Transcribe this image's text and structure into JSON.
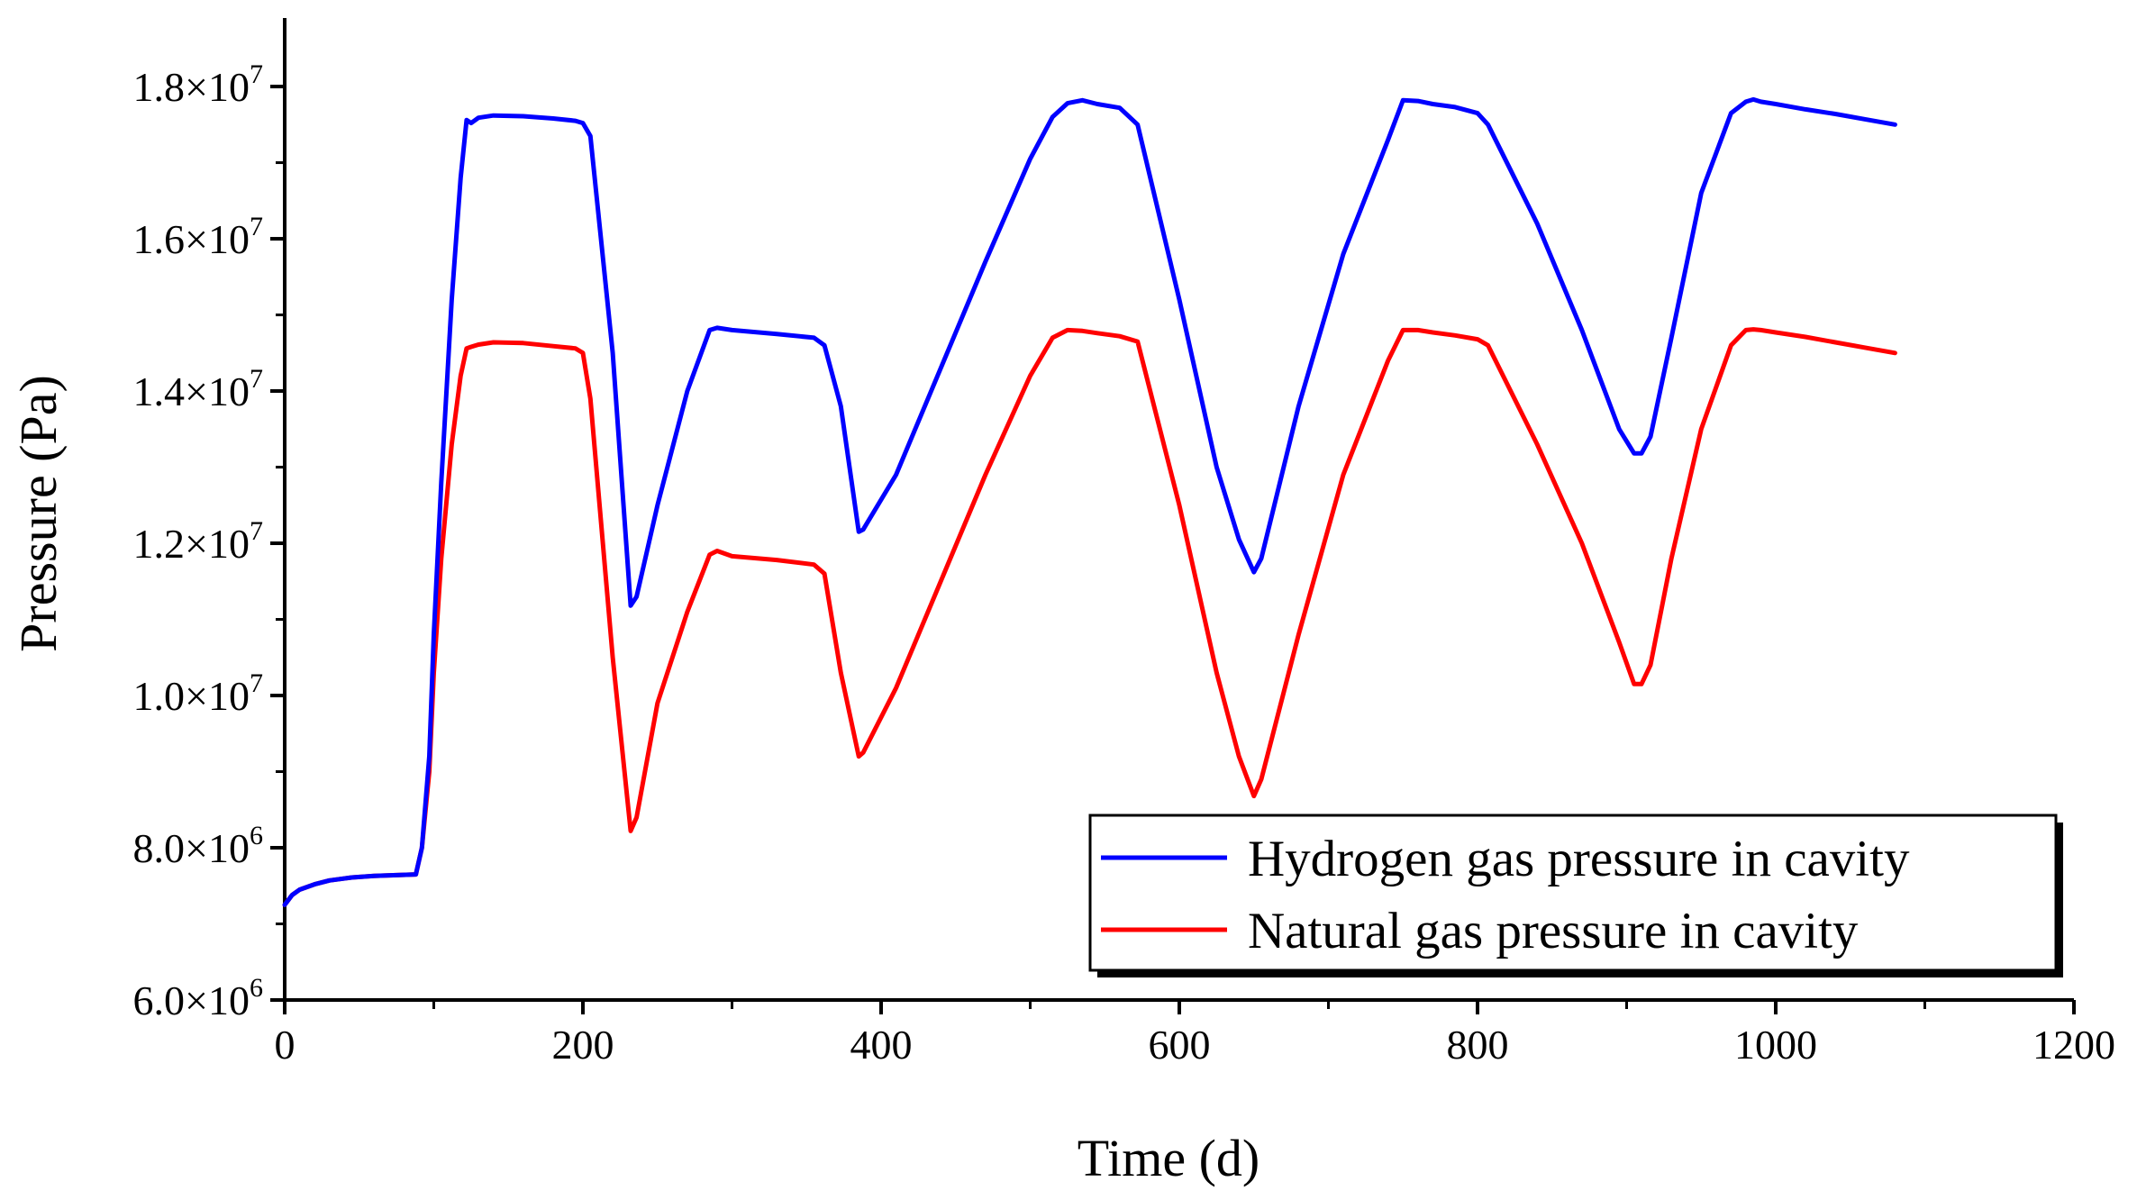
{
  "chart_data": {
    "type": "line",
    "title": "",
    "xlabel": "Time (d)",
    "ylabel": "Pressure (Pa)",
    "xlim": [
      0,
      1200
    ],
    "ylim": [
      6000000,
      18900000
    ],
    "x_ticks": [
      0,
      200,
      400,
      600,
      800,
      1000,
      1200
    ],
    "x_tick_labels": [
      "0",
      "200",
      "400",
      "600",
      "800",
      "1000",
      "1200"
    ],
    "y_ticks": [
      {
        "value": 6000000,
        "mantissa": "6.0",
        "exp": "6"
      },
      {
        "value": 8000000,
        "mantissa": "8.0",
        "exp": "6"
      },
      {
        "value": 10000000,
        "mantissa": "1.0",
        "exp": "7"
      },
      {
        "value": 12000000,
        "mantissa": "1.2",
        "exp": "7"
      },
      {
        "value": 14000000,
        "mantissa": "1.4",
        "exp": "7"
      },
      {
        "value": 16000000,
        "mantissa": "1.6",
        "exp": "7"
      },
      {
        "value": 18000000,
        "mantissa": "1.8",
        "exp": "7"
      }
    ],
    "y_tick_times": "×10",
    "legend_position": "bottom-right",
    "series": [
      {
        "name": "Hydrogen gas pressure in cavity",
        "color": "#0000ff",
        "x": [
          0,
          5,
          10,
          20,
          30,
          45,
          60,
          75,
          88,
          92,
          97,
          100,
          105,
          112,
          118,
          122,
          125,
          130,
          140,
          160,
          180,
          195,
          200,
          205,
          220,
          232,
          236,
          250,
          270,
          285,
          290,
          300,
          330,
          355,
          362,
          373,
          385,
          388,
          410,
          440,
          470,
          500,
          515,
          525,
          535,
          545,
          560,
          572,
          600,
          625,
          640,
          650,
          655,
          680,
          710,
          740,
          750,
          760,
          770,
          785,
          800,
          807,
          840,
          870,
          895,
          905,
          910,
          916,
          930,
          950,
          970,
          980,
          985,
          990,
          1000,
          1020,
          1040,
          1060,
          1080
        ],
        "y": [
          7250000,
          7380000,
          7450000,
          7520000,
          7570000,
          7610000,
          7630000,
          7640000,
          7650000,
          8000000,
          9200000,
          10800000,
          12800000,
          15200000,
          16800000,
          17560000,
          17520000,
          17590000,
          17620000,
          17610000,
          17580000,
          17550000,
          17520000,
          17350000,
          14500000,
          11180000,
          11300000,
          12500000,
          14000000,
          14800000,
          14830000,
          14800000,
          14750000,
          14700000,
          14600000,
          13800000,
          12150000,
          12180000,
          12900000,
          14300000,
          15700000,
          17050000,
          17600000,
          17780000,
          17820000,
          17770000,
          17720000,
          17500000,
          15200000,
          13000000,
          12050000,
          11620000,
          11800000,
          13800000,
          15800000,
          17300000,
          17820000,
          17810000,
          17770000,
          17730000,
          17650000,
          17500000,
          16200000,
          14800000,
          13500000,
          13180000,
          13180000,
          13400000,
          14700000,
          16600000,
          17650000,
          17800000,
          17830000,
          17800000,
          17770000,
          17700000,
          17640000,
          17570000,
          17500000
        ]
      },
      {
        "name": "Natural gas pressure in cavity",
        "color": "#ff0000",
        "x": [
          0,
          5,
          10,
          20,
          30,
          45,
          60,
          75,
          88,
          92,
          97,
          100,
          105,
          112,
          118,
          122,
          125,
          130,
          140,
          160,
          180,
          195,
          200,
          205,
          220,
          232,
          236,
          250,
          270,
          285,
          290,
          300,
          330,
          355,
          362,
          373,
          385,
          388,
          410,
          440,
          470,
          500,
          515,
          525,
          535,
          545,
          560,
          572,
          600,
          625,
          640,
          650,
          655,
          680,
          710,
          740,
          750,
          760,
          770,
          785,
          800,
          807,
          840,
          870,
          895,
          905,
          910,
          916,
          930,
          950,
          970,
          980,
          985,
          990,
          1000,
          1020,
          1040,
          1060,
          1080
        ],
        "y": [
          7250000,
          7380000,
          7450000,
          7520000,
          7570000,
          7610000,
          7630000,
          7640000,
          7650000,
          8000000,
          9000000,
          10300000,
          11800000,
          13300000,
          14200000,
          14560000,
          14580000,
          14610000,
          14640000,
          14630000,
          14590000,
          14560000,
          14500000,
          13900000,
          10500000,
          8220000,
          8400000,
          9900000,
          11100000,
          11850000,
          11900000,
          11830000,
          11780000,
          11720000,
          11600000,
          10300000,
          9200000,
          9250000,
          10100000,
          11500000,
          12900000,
          14200000,
          14700000,
          14800000,
          14790000,
          14760000,
          14720000,
          14650000,
          12500000,
          10300000,
          9200000,
          8680000,
          8900000,
          10800000,
          12900000,
          14400000,
          14800000,
          14800000,
          14770000,
          14730000,
          14680000,
          14600000,
          13300000,
          12000000,
          10700000,
          10150000,
          10150000,
          10400000,
          11800000,
          13500000,
          14600000,
          14800000,
          14810000,
          14800000,
          14770000,
          14710000,
          14640000,
          14570000,
          14500000
        ]
      }
    ]
  }
}
